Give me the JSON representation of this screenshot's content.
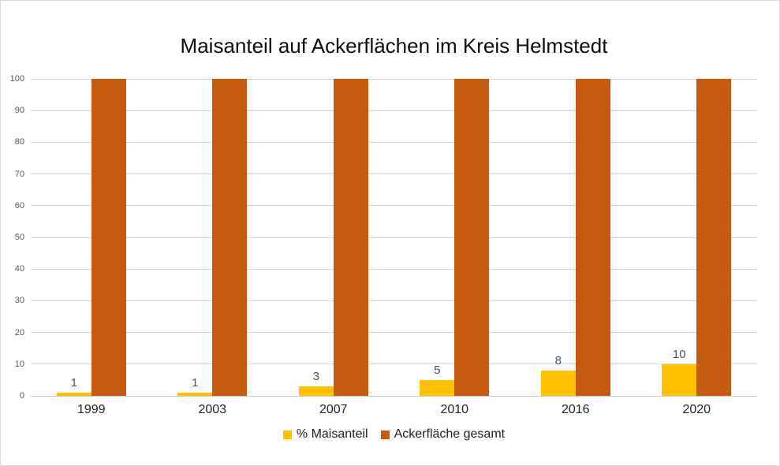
{
  "chart_data": {
    "type": "bar",
    "title": "Maisanteil auf Ackerflächen im Kreis Helmstedt",
    "categories": [
      "1999",
      "2003",
      "2007",
      "2010",
      "2016",
      "2020"
    ],
    "series": [
      {
        "name": "% Maisanteil",
        "color": "#FFC000",
        "values": [
          1,
          1,
          3,
          5,
          8,
          10
        ],
        "data_labels": [
          "1",
          "1",
          "3",
          "5",
          "8",
          "10"
        ]
      },
      {
        "name": "Ackerfläche gesamt",
        "color": "#C55A11",
        "values": [
          100,
          100,
          100,
          100,
          100,
          100
        ],
        "data_labels": null
      }
    ],
    "xlabel": "",
    "ylabel": "",
    "ylim": [
      0,
      100
    ],
    "yticks": [
      0,
      10,
      20,
      30,
      40,
      50,
      60,
      70,
      80,
      90,
      100
    ],
    "grid": "horizontal",
    "legend_position": "bottom",
    "colors": {
      "background": "#FFFFFF",
      "border": "#D9D9D9",
      "gridline": "#D9D9D9",
      "axis_line": "#C9C9C9",
      "y_tick_label": "#595959",
      "x_tick_label": "#262626",
      "data_label": "#44546A",
      "title_text": "#0D0D0D",
      "legend_text": "#1F1F1F"
    }
  }
}
